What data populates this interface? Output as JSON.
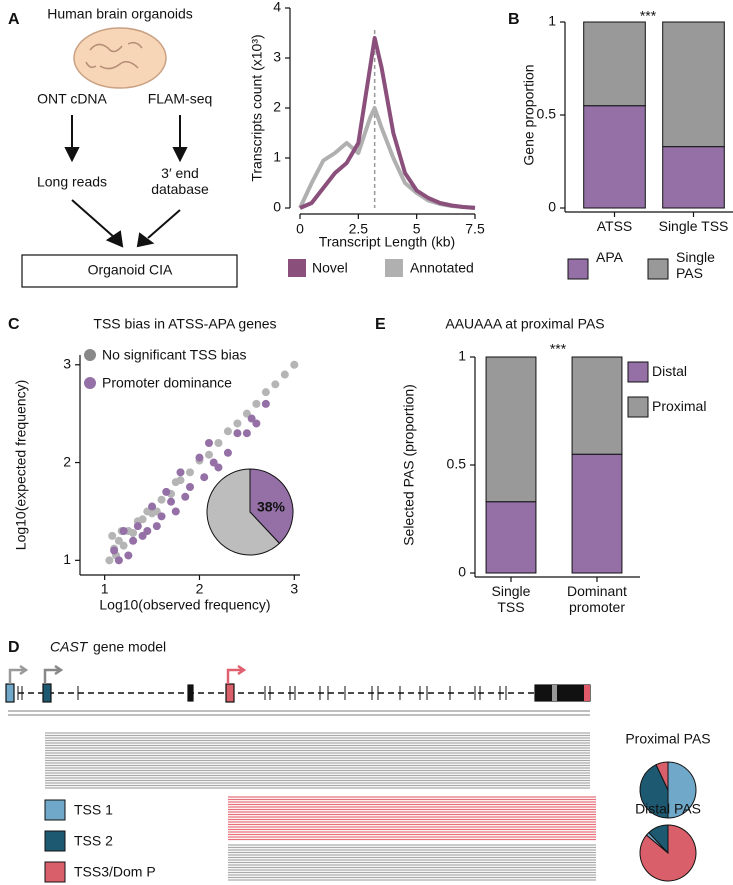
{
  "panel_labels": [
    "A",
    "B",
    "C",
    "D",
    "E"
  ],
  "diagram": {
    "title": "Human brain organoids",
    "nodes": [
      {
        "label": "ONT cDNA"
      },
      {
        "label": "FLAM-seq"
      },
      {
        "label": "Long reads"
      },
      {
        "label": "3′ end database"
      },
      {
        "label": "Organoid CIA"
      }
    ]
  },
  "chart_data": [
    {
      "type": "line",
      "xlabel": "Transcript Length (kb)",
      "ylabel": "Transcripts count (x10³)",
      "x": [
        0,
        0.5,
        1,
        1.5,
        2,
        2.5,
        3,
        3.2,
        3.5,
        4,
        4.5,
        5,
        5.5,
        6,
        6.5,
        7,
        7.5
      ],
      "xlim": [
        0,
        7.5
      ],
      "xticks": [
        0,
        2.5,
        5,
        7.5
      ],
      "ylim": [
        0,
        4
      ],
      "yticks": [
        0,
        1,
        2,
        3,
        4
      ],
      "reference_line_x": 3.2,
      "series": [
        {
          "name": "Novel",
          "color": "#8b4f7b",
          "values": [
            0,
            0.1,
            0.4,
            0.7,
            0.9,
            1.3,
            2.8,
            3.4,
            2.8,
            1.5,
            0.7,
            0.35,
            0.2,
            0.1,
            0.05,
            0.02,
            0
          ]
        },
        {
          "name": "Annotated",
          "color": "#b0b0b0",
          "values": [
            0,
            0.5,
            0.95,
            1.1,
            1.3,
            1.1,
            1.8,
            2.0,
            1.6,
            1.0,
            0.5,
            0.3,
            0.15,
            0.08,
            0.04,
            0.02,
            0.01
          ]
        }
      ]
    },
    {
      "type": "stacked_bar",
      "ylabel": "Gene proportion",
      "annotation": "***",
      "categories": [
        "ATSS",
        "Single TSS"
      ],
      "ylim": [
        0,
        1
      ],
      "yticks": [
        0,
        0.5,
        1
      ],
      "series": [
        {
          "name": "APA",
          "color": "#9470a6",
          "values": [
            0.55,
            0.33
          ]
        },
        {
          "name": "Single PAS",
          "color": "#999999",
          "values": [
            0.45,
            0.67
          ]
        }
      ]
    },
    {
      "type": "scatter",
      "title": "TSS bias in ATSS-APA genes",
      "xlabel": "Log10(observed frequency)",
      "ylabel": "Log10(expected frequency)",
      "xlim": [
        0.74,
        3.06
      ],
      "xticks": [
        1,
        2,
        3
      ],
      "ylim": [
        0.85,
        3.1
      ],
      "yticks": [
        1,
        2,
        3
      ],
      "series": [
        {
          "name": "No significant TSS bias",
          "color": "#b5b5b5",
          "x": [
            1.05,
            1.1,
            1.15,
            1.2,
            1.25,
            1.3,
            1.4,
            1.5,
            1.6,
            1.7,
            1.8,
            1.9,
            2.0,
            2.1,
            2.2,
            2.3,
            2.4,
            2.5,
            2.6,
            2.7,
            2.8,
            2.9,
            3.0,
            1.08,
            1.12,
            1.18,
            1.35,
            1.45,
            1.55,
            1.75
          ],
          "y": [
            1.0,
            1.12,
            1.2,
            1.15,
            1.3,
            1.28,
            1.42,
            1.48,
            1.62,
            1.68,
            1.82,
            1.9,
            2.02,
            2.08,
            2.2,
            2.32,
            2.4,
            2.5,
            2.6,
            2.72,
            2.8,
            2.9,
            3.0,
            1.25,
            1.05,
            1.3,
            1.4,
            1.5,
            1.5,
            1.8
          ]
        },
        {
          "name": "Promoter dominance",
          "color": "#9470a6",
          "x": [
            1.1,
            1.15,
            1.2,
            1.25,
            1.3,
            1.35,
            1.4,
            1.5,
            1.55,
            1.6,
            1.7,
            1.75,
            1.8,
            1.9,
            2.0,
            2.05,
            2.1,
            2.2,
            2.3,
            2.4,
            2.5,
            2.55,
            2.6,
            2.7,
            1.45,
            1.65,
            1.85,
            2.15
          ],
          "y": [
            1.1,
            1.0,
            1.3,
            1.05,
            1.2,
            1.35,
            1.25,
            1.55,
            1.35,
            1.45,
            1.6,
            1.5,
            1.9,
            1.75,
            2.05,
            1.85,
            2.2,
            1.95,
            2.1,
            2.3,
            2.3,
            2.45,
            2.4,
            2.6,
            1.3,
            1.7,
            1.65,
            2.0
          ]
        }
      ],
      "inset": {
        "type": "pie",
        "values": [
          38,
          62
        ],
        "colors": [
          "#9470a6",
          "#bdbdbd"
        ],
        "value_labels": [
          "38%",
          null
        ]
      }
    },
    {
      "type": "stacked_bar",
      "title": "AAUAAA at proximal PAS",
      "ylabel": "Selected PAS (proportion)",
      "annotation": "***",
      "categories": [
        "Single TSS",
        "Dominant promoter"
      ],
      "ylim": [
        0,
        1
      ],
      "yticks": [
        0,
        0.5,
        1
      ],
      "series": [
        {
          "name": "Distal",
          "color": "#9470a6",
          "values": [
            0.33,
            0.55
          ]
        },
        {
          "name": "Proximal",
          "color": "#999999",
          "values": [
            0.67,
            0.45
          ]
        }
      ]
    },
    {
      "type": "pie",
      "title": "Proximal PAS",
      "categories": [
        "TSS 1",
        "TSS 2",
        "TSS3/Dom P"
      ],
      "colors": [
        "#6fa8c8",
        "#1d5a72",
        "#d9606a"
      ],
      "values": [
        50,
        43,
        7
      ]
    },
    {
      "type": "pie",
      "title": "Distal PAS",
      "colors": [
        "#6fa8c8",
        "#1d5a72",
        "#d9606a"
      ],
      "values": [
        2,
        12,
        86
      ]
    }
  ],
  "gene_model": {
    "gene": "CAST",
    "title": "gene model"
  }
}
